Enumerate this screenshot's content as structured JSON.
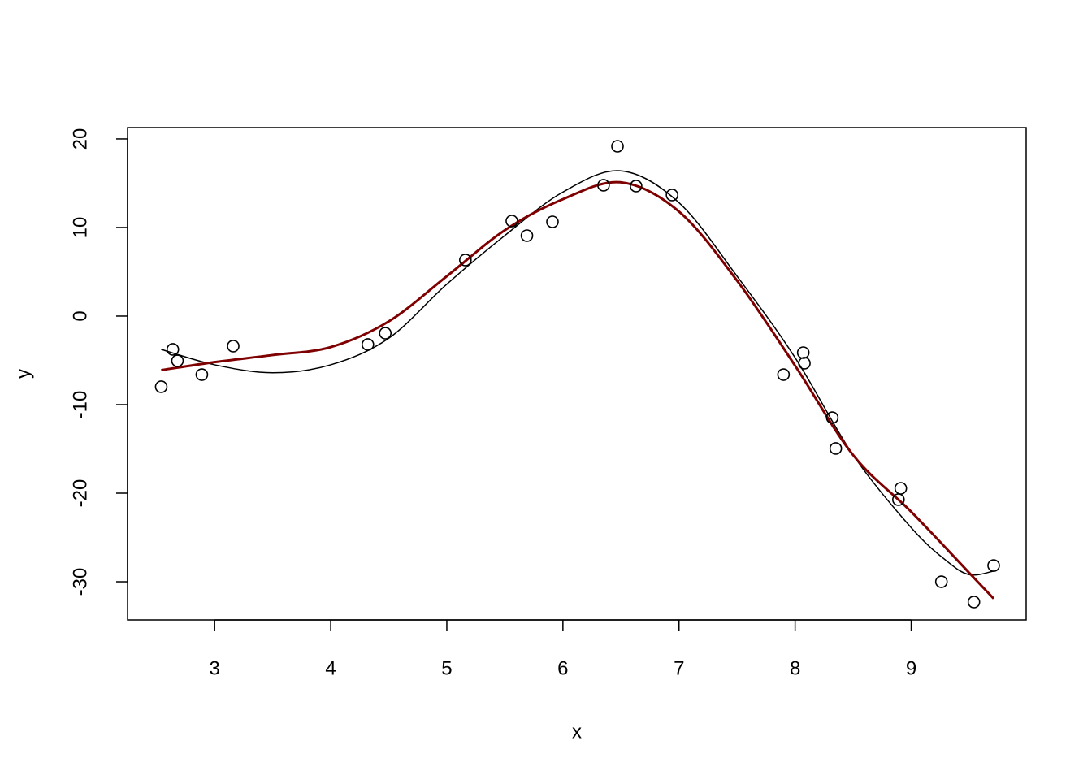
{
  "chart_data": {
    "type": "scatter",
    "x_label": "x",
    "y_label": "y",
    "x": [
      2.54,
      2.64,
      2.68,
      2.89,
      3.16,
      4.32,
      4.47,
      5.16,
      5.56,
      5.69,
      5.91,
      6.35,
      6.47,
      6.63,
      6.94,
      7.9,
      8.07,
      8.08,
      8.32,
      8.35,
      8.89,
      8.91,
      9.26,
      9.54,
      9.71
    ],
    "y": [
      -7.98,
      -3.76,
      -5.05,
      -6.61,
      -3.39,
      -3.21,
      -1.93,
      6.33,
      10.73,
      9.08,
      10.64,
      14.77,
      19.17,
      14.68,
      13.67,
      -6.61,
      -4.13,
      -5.32,
      -11.47,
      -14.95,
      -20.73,
      -19.45,
      -30.0,
      -32.29,
      -28.17
    ],
    "marker_color": "#000000",
    "lines": [
      {
        "color": "#000000",
        "x": [
          2.54,
          3,
          3.5,
          4,
          4.5,
          5,
          5.5,
          6,
          6.5,
          7,
          7.5,
          8,
          8.5,
          9,
          9.3,
          9.5,
          9.71
        ],
        "values": [
          -3.76,
          -5.5,
          -6.4,
          -5.5,
          -2.5,
          3.6,
          9.1,
          14.0,
          16.4,
          12.8,
          4.5,
          -4.7,
          -15.7,
          -23.9,
          -27.6,
          -29.2,
          -28.8
        ]
      },
      {
        "color": "#7f0000",
        "x": [
          2.54,
          3,
          3.5,
          4,
          4.5,
          5,
          5.5,
          6,
          6.5,
          7,
          7.5,
          8,
          8.5,
          9,
          9.5,
          9.71
        ],
        "values": [
          -6.1,
          -5.2,
          -4.4,
          -3.5,
          -0.6,
          4.5,
          9.7,
          13.2,
          15.1,
          11.8,
          4.0,
          -5.6,
          -15.7,
          -22.1,
          -29.0,
          -31.9
        ]
      }
    ],
    "xlim": [
      2.25,
      9.99
    ],
    "ylim": [
      -34.31,
      21.28
    ],
    "xticks": [
      3,
      4,
      5,
      6,
      7,
      8,
      9
    ],
    "yticks": [
      -30,
      -20,
      -10,
      0,
      10,
      20
    ]
  }
}
